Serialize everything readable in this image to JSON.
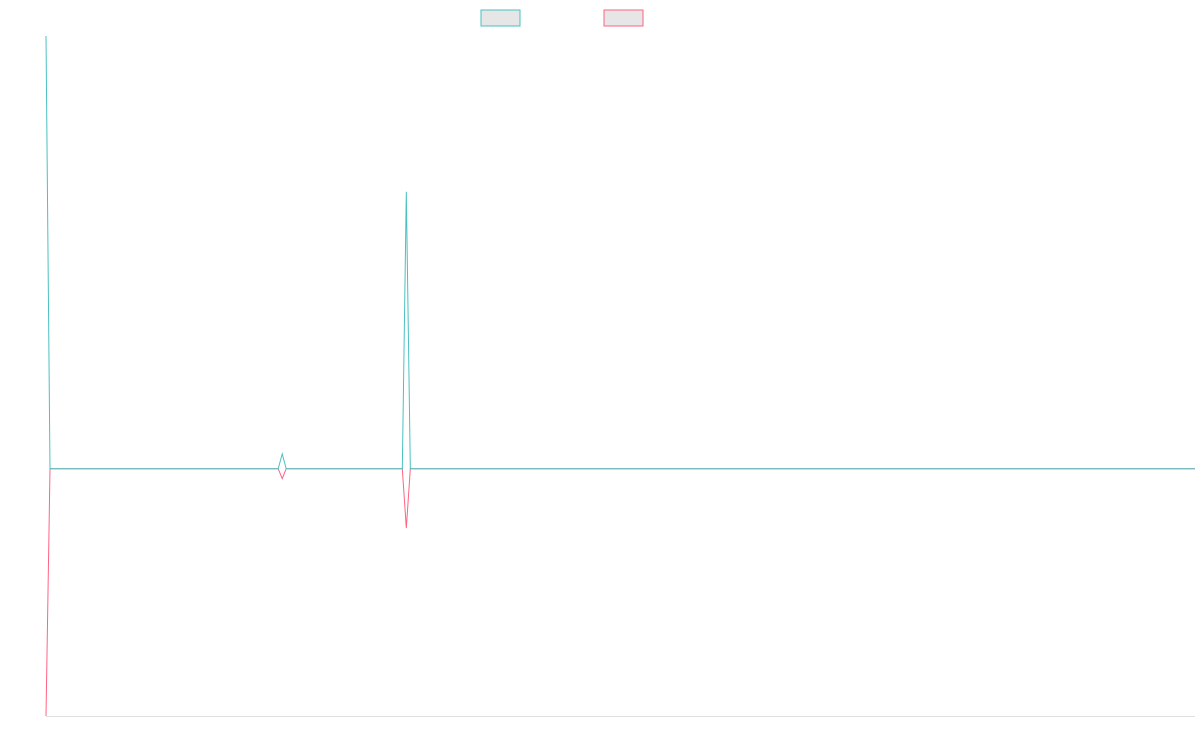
{
  "chart_data": {
    "type": "line",
    "x": [
      0,
      1,
      58,
      59,
      60,
      89,
      90,
      91,
      287
    ],
    "xlim": [
      0,
      287
    ],
    "ylim": [
      -100,
      175
    ],
    "series": [
      {
        "color": "#4bc0c0",
        "values": [
          175,
          0,
          0,
          6,
          0,
          0,
          112,
          0,
          0
        ]
      },
      {
        "color": "#ff6384",
        "values": [
          -100,
          0,
          0,
          -4,
          0,
          0,
          -24,
          0,
          0
        ]
      }
    ]
  }
}
